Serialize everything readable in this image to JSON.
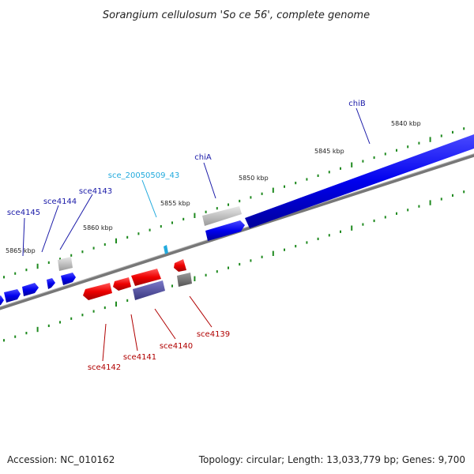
{
  "title": "Sorangium cellulosum 'So ce 56', complete genome",
  "footer": {
    "accession": "Accession: NC_010162",
    "summary": "Topology: circular; Length: 13,033,779 bp; Genes: 9,700"
  },
  "colors": {
    "forward_gene": "#0000ee",
    "reverse_gene": "#ee0000",
    "leader_forward": "#1a1aa8",
    "leader_reverse": "#b00000",
    "leader_rna": "#22aadd",
    "tick_minor": "#1f8a1f",
    "backbone": "#888888"
  },
  "kbp_labels": [
    "5840 kbp",
    "5845 kbp",
    "5850 kbp",
    "5855 kbp",
    "5860 kbp",
    "5865 kbp"
  ],
  "forward_gene_labels": [
    "chiB",
    "chiA",
    "sce_20050509_43",
    "sce4143",
    "sce4144",
    "sce4145"
  ],
  "reverse_gene_labels": [
    "sce4139",
    "sce4140",
    "sce4141",
    "sce4142"
  ]
}
